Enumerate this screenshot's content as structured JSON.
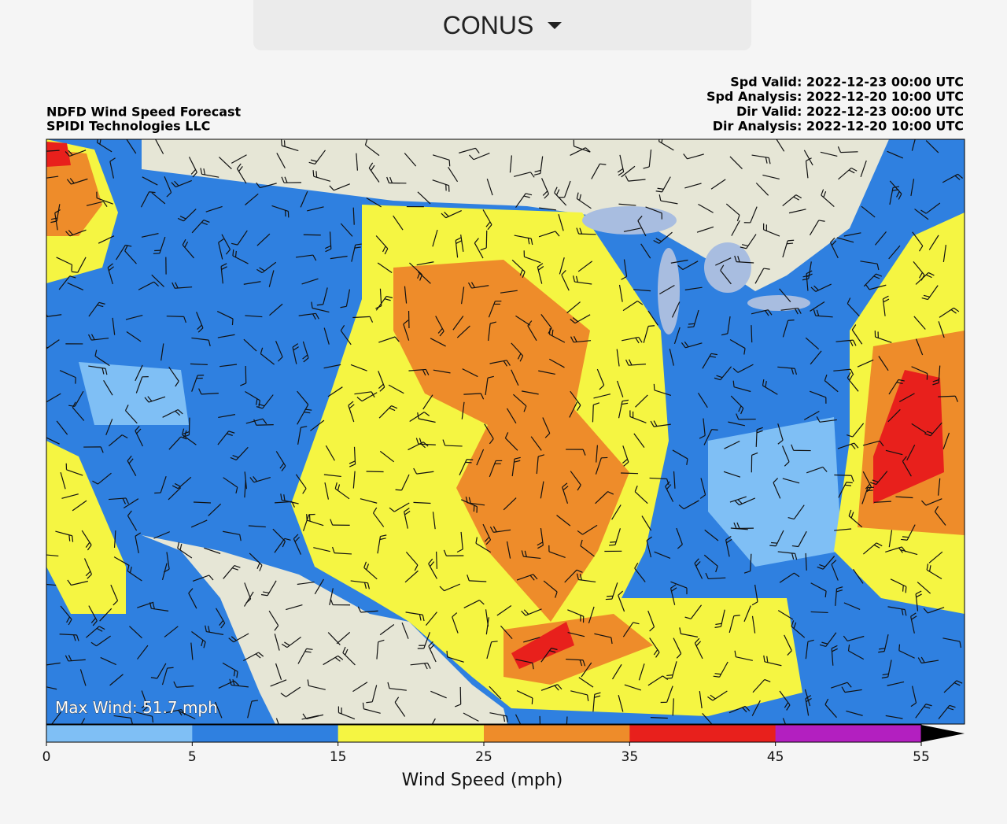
{
  "dropdown": {
    "label": "CONUS"
  },
  "header": {
    "title": "NDFD Wind Speed Forecast",
    "org": "SPIDI Technologies LLC",
    "times": [
      "Spd Valid: 2022-12-23 00:00 UTC",
      "Spd Analysis: 2022-12-20 10:00 UTC",
      "Dir Valid: 2022-12-23 00:00 UTC",
      "Dir Analysis: 2022-12-20 10:00 UTC"
    ]
  },
  "map": {
    "annotation": "Max Wind: 51.7 mph"
  },
  "colorbar": {
    "label": "Wind Speed (mph)",
    "ticks": [
      0,
      5,
      15,
      25,
      35,
      45,
      55
    ],
    "colors": [
      "#7fbff5",
      "#2f80e0",
      "#f5f542",
      "#ee8c2a",
      "#e8201c",
      "#b31fc0"
    ]
  }
}
